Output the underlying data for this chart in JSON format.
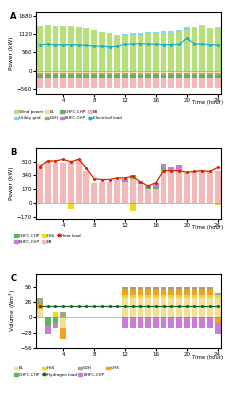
{
  "hours": [
    1,
    2,
    3,
    4,
    5,
    6,
    7,
    8,
    9,
    10,
    11,
    12,
    13,
    14,
    15,
    16,
    17,
    18,
    19,
    20,
    21,
    22,
    23,
    24
  ],
  "A": {
    "wind_power": [
      1380,
      1390,
      1370,
      1360,
      1380,
      1350,
      1320,
      1260,
      1200,
      1150,
      1100,
      1080,
      1090,
      1100,
      1120,
      1130,
      1150,
      1160,
      1180,
      1250,
      1340,
      1390,
      1310,
      1330
    ],
    "utility_grid": [
      0,
      0,
      0,
      0,
      0,
      0,
      0,
      0,
      0,
      0,
      0,
      60,
      60,
      70,
      60,
      60,
      70,
      60,
      80,
      90,
      0,
      0,
      0,
      0
    ],
    "EL_neg": [
      -80,
      -80,
      -80,
      -80,
      -80,
      -80,
      -80,
      -80,
      -80,
      -80,
      -80,
      -80,
      -80,
      -80,
      -80,
      -80,
      -80,
      -80,
      -80,
      -80,
      -80,
      -80,
      -80,
      -80
    ],
    "G2H_neg": [
      -50,
      -50,
      -50,
      -50,
      -50,
      -50,
      -50,
      -50,
      -50,
      -50,
      -50,
      -50,
      -50,
      -50,
      -50,
      -50,
      -50,
      -50,
      -50,
      -50,
      -50,
      -50,
      -50,
      -50
    ],
    "GHFC_neg": [
      -80,
      -80,
      -80,
      -80,
      -80,
      -80,
      -80,
      -80,
      -80,
      -80,
      -80,
      -80,
      -80,
      -80,
      -80,
      -80,
      -80,
      -80,
      -80,
      -80,
      -80,
      -80,
      -80,
      -80
    ],
    "EB_neg": [
      -310,
      -310,
      -310,
      -310,
      -310,
      -310,
      -310,
      -310,
      -310,
      -310,
      -310,
      -310,
      -310,
      -310,
      -310,
      -310,
      -310,
      -310,
      -310,
      -310,
      -310,
      -310,
      -310,
      -310
    ],
    "electrical_load": [
      800,
      810,
      800,
      790,
      800,
      790,
      780,
      760,
      750,
      740,
      750,
      810,
      820,
      830,
      820,
      810,
      800,
      800,
      810,
      990,
      830,
      810,
      800,
      790
    ]
  },
  "B": {
    "GHFC_CHP": [
      0,
      0,
      0,
      0,
      0,
      0,
      0,
      0,
      0,
      0,
      0,
      10,
      10,
      10,
      10,
      30,
      30,
      20,
      30,
      0,
      0,
      0,
      0,
      0
    ],
    "BHFC_CHP": [
      0,
      0,
      0,
      0,
      0,
      0,
      0,
      0,
      0,
      0,
      0,
      30,
      30,
      30,
      30,
      50,
      50,
      40,
      50,
      0,
      0,
      0,
      0,
      0
    ],
    "HSS_neg": [
      0,
      0,
      0,
      0,
      -80,
      0,
      0,
      0,
      0,
      0,
      0,
      0,
      -100,
      0,
      0,
      0,
      0,
      0,
      0,
      0,
      0,
      0,
      0,
      -30
    ],
    "EB": [
      480,
      520,
      490,
      500,
      510,
      540,
      400,
      250,
      260,
      260,
      290,
      260,
      300,
      230,
      170,
      170,
      400,
      390,
      390,
      370,
      390,
      390,
      380,
      390
    ],
    "heat_load": [
      450,
      520,
      520,
      540,
      510,
      540,
      430,
      300,
      290,
      290,
      310,
      310,
      330,
      260,
      210,
      250,
      400,
      400,
      400,
      380,
      390,
      400,
      390,
      440
    ]
  },
  "C": {
    "EL": [
      15,
      0,
      0,
      -20,
      0,
      0,
      0,
      0,
      0,
      0,
      0,
      35,
      35,
      35,
      35,
      35,
      35,
      35,
      35,
      35,
      35,
      35,
      35,
      35
    ],
    "G2H": [
      10,
      0,
      0,
      10,
      0,
      0,
      0,
      0,
      0,
      0,
      0,
      5,
      5,
      5,
      5,
      5,
      5,
      5,
      5,
      5,
      5,
      5,
      5,
      5
    ],
    "GHFC_CHP": [
      0,
      -15,
      -10,
      0,
      0,
      0,
      0,
      0,
      0,
      0,
      0,
      0,
      0,
      0,
      0,
      0,
      0,
      0,
      0,
      0,
      0,
      0,
      0,
      0
    ],
    "BHFC_CHP": [
      0,
      -15,
      -10,
      0,
      0,
      0,
      0,
      0,
      0,
      0,
      0,
      -20,
      -20,
      -20,
      -20,
      -20,
      -20,
      -20,
      -20,
      -20,
      -20,
      -20,
      -20,
      -20
    ],
    "HSS": [
      0,
      0,
      10,
      0,
      0,
      0,
      0,
      0,
      0,
      0,
      0,
      5,
      5,
      5,
      5,
      5,
      5,
      5,
      5,
      5,
      5,
      5,
      5,
      5
    ],
    "GHS": [
      10,
      0,
      0,
      -20,
      0,
      0,
      0,
      0,
      0,
      0,
      0,
      10,
      10,
      10,
      10,
      10,
      10,
      10,
      10,
      10,
      10,
      10,
      10,
      -10
    ],
    "hydrogen_load": [
      20,
      20,
      20,
      20,
      20,
      20,
      20,
      20,
      20,
      20,
      20,
      20,
      20,
      20,
      20,
      20,
      20,
      20,
      20,
      20,
      20,
      20,
      20,
      20
    ]
  },
  "colors": {
    "wind_power": "#b5e07a",
    "utility_grid": "#7dd8f0",
    "EL_color": "#f0e098",
    "G2H_color": "#a0a880",
    "GHFC_color": "#5ab85a",
    "BHFC_color": "#c87ed8",
    "EB_color": "#f5b8b8",
    "elec_load": "#1ab0cc",
    "heat_load": "#dd2200",
    "hydrogen_load": "#116622",
    "HSS_color": "#f0d820",
    "GHS_color": "#f5a020"
  }
}
